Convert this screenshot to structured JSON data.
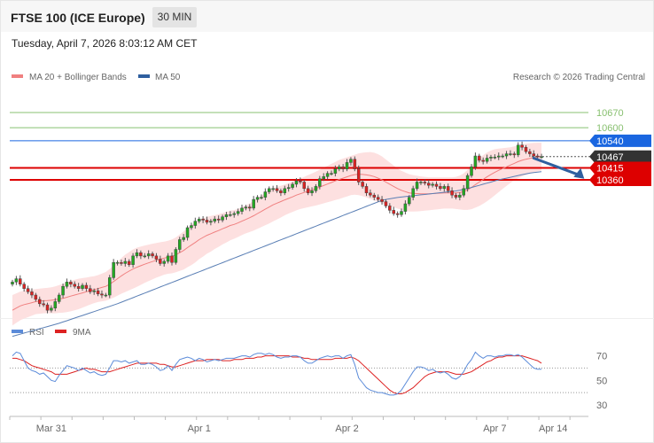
{
  "header": {
    "title": "FTSE 100 (ICE Europe)",
    "interval": "30 MIN",
    "timestamp": "Tuesday, April 7, 2026 8:03:12 AM CET"
  },
  "legend": {
    "ma20": "MA 20 + Bollinger Bands",
    "ma50": "MA 50",
    "credit": "Research © 2026 Trading Central",
    "rsi": "RSI",
    "rsi_ma": "9MA"
  },
  "colors": {
    "candle_up": "#22aa22",
    "candle_down": "#dd2222",
    "bollinger_fill": "#fde0e0",
    "ma20": "#f08080",
    "ma50": "#5a7fb5",
    "support": "#dd0000",
    "resistance_blue": "#1a66e0",
    "target_green": "#88c070",
    "current": "#333333",
    "rsi": "#5b8bd9",
    "rsi_ma": "#dd2222",
    "arrow": "#2f5f9f"
  },
  "chart_data": [
    {
      "type": "candlestick",
      "title": "FTSE 100 (ICE Europe)",
      "interval": "30 MIN",
      "ylim": [
        9720,
        10780
      ],
      "x_tick_labels": [
        {
          "label": "Mar 31",
          "index": 10
        },
        {
          "label": "Apr 1",
          "index": 48
        },
        {
          "label": "Apr 2",
          "index": 86
        },
        {
          "label": "Apr 7",
          "index": 124
        },
        {
          "label": "Apr 14",
          "index": 139
        }
      ],
      "levels": [
        {
          "value": 10670,
          "label": "10670",
          "kind": "target",
          "color": "#88c070"
        },
        {
          "value": 10600,
          "label": "10600",
          "kind": "target",
          "color": "#88c070"
        },
        {
          "value": 10540,
          "label": "10540",
          "kind": "resistance",
          "color": "#1a66e0"
        },
        {
          "value": 10467,
          "label": "10467",
          "kind": "last",
          "color": "#333333"
        },
        {
          "value": 10415,
          "label": "10415",
          "kind": "pivot",
          "color": "#dd0000"
        },
        {
          "value": 10360,
          "label": "10360",
          "kind": "support",
          "color": "#dd0000"
        }
      ],
      "arrow": {
        "from": {
          "index": 134,
          "value": 10460
        },
        "to": {
          "index": 147,
          "value": 10365
        }
      },
      "close": [
        9890,
        9905,
        9880,
        9860,
        9845,
        9830,
        9810,
        9790,
        9785,
        9760,
        9770,
        9800,
        9830,
        9870,
        9890,
        9880,
        9870,
        9860,
        9875,
        9860,
        9845,
        9850,
        9835,
        9830,
        9830,
        9910,
        9980,
        9980,
        9975,
        9985,
        9970,
        10010,
        10025,
        10010,
        10010,
        10020,
        10010,
        9995,
        9975,
        9985,
        10010,
        9980,
        10040,
        10085,
        10095,
        10140,
        10150,
        10170,
        10180,
        10175,
        10165,
        10170,
        10180,
        10175,
        10190,
        10200,
        10200,
        10205,
        10215,
        10230,
        10235,
        10230,
        10270,
        10280,
        10280,
        10305,
        10320,
        10320,
        10310,
        10300,
        10320,
        10325,
        10340,
        10355,
        10350,
        10320,
        10300,
        10310,
        10330,
        10365,
        10375,
        10390,
        10390,
        10410,
        10420,
        10410,
        10440,
        10455,
        10410,
        10350,
        10330,
        10300,
        10290,
        10280,
        10270,
        10260,
        10240,
        10220,
        10205,
        10200,
        10215,
        10250,
        10280,
        10320,
        10350,
        10350,
        10345,
        10335,
        10340,
        10330,
        10320,
        10330,
        10310,
        10290,
        10280,
        10290,
        10320,
        10380,
        10420,
        10470,
        10450,
        10445,
        10460,
        10465,
        10465,
        10470,
        10470,
        10480,
        10480,
        10475,
        10520,
        10510,
        10490,
        10480,
        10470,
        10467,
        10467
      ],
      "ma20": [
        9760,
        9770,
        9780,
        9786,
        9790,
        9795,
        9800,
        9802,
        9804,
        9805,
        9806,
        9808,
        9812,
        9815,
        9820,
        9825,
        9830,
        9835,
        9840,
        9845,
        9850,
        9855,
        9860,
        9865,
        9870,
        9880,
        9892,
        9905,
        9918,
        9930,
        9940,
        9950,
        9958,
        9965,
        9972,
        9978,
        9984,
        9990,
        9995,
        10000,
        10004,
        10008,
        10015,
        10025,
        10035,
        10048,
        10060,
        10072,
        10085,
        10095,
        10105,
        10112,
        10120,
        10127,
        10135,
        10142,
        10150,
        10155,
        10162,
        10170,
        10178,
        10186,
        10195,
        10205,
        10215,
        10225,
        10235,
        10245,
        10253,
        10260,
        10268,
        10275,
        10282,
        10290,
        10296,
        10302,
        10308,
        10314,
        10320,
        10327,
        10334,
        10341,
        10348,
        10355,
        10362,
        10368,
        10374,
        10380,
        10384,
        10386,
        10385,
        10383,
        10380,
        10375,
        10368,
        10360,
        10350,
        10340,
        10330,
        10320,
        10312,
        10306,
        10300,
        10298,
        10297,
        10296,
        10296,
        10296,
        10297,
        10298,
        10299,
        10300,
        10300,
        10300,
        10300,
        10302,
        10306,
        10314,
        10325,
        10338,
        10350,
        10362,
        10374,
        10385,
        10395,
        10404,
        10412,
        10420,
        10428,
        10436,
        10444,
        10450,
        10455,
        10459,
        10462,
        10465,
        10467
      ],
      "band_width": [
        70,
        68,
        66,
        64,
        62,
        60,
        58,
        58,
        58,
        58,
        60,
        62,
        64,
        66,
        68,
        70,
        70,
        70,
        68,
        66,
        64,
        62,
        62,
        64,
        66,
        70,
        74,
        78,
        82,
        86,
        88,
        90,
        90,
        88,
        86,
        84,
        82,
        80,
        78,
        76,
        76,
        78,
        80,
        84,
        88,
        90,
        92,
        92,
        90,
        88,
        85,
        82,
        78,
        75,
        72,
        70,
        68,
        66,
        65,
        64,
        64,
        66,
        68,
        70,
        72,
        74,
        76,
        76,
        75,
        73,
        71,
        70,
        70,
        70,
        70,
        72,
        74,
        76,
        78,
        80,
        82,
        84,
        86,
        88,
        90,
        90,
        90,
        90,
        92,
        96,
        100,
        104,
        108,
        110,
        110,
        108,
        104,
        100,
        96,
        92,
        90,
        88,
        86,
        84,
        82,
        80,
        78,
        76,
        75,
        74,
        73,
        72,
        72,
        72,
        74,
        78,
        84,
        92,
        100,
        106,
        110,
        112,
        112,
        110,
        106,
        100,
        94,
        88,
        82,
        78,
        76,
        74,
        72,
        70,
        68,
        66,
        64
      ],
      "ma50": [
        9640,
        9645,
        9650,
        9655,
        9660,
        9665,
        9670,
        9675,
        9680,
        9685,
        9690,
        9695,
        9700,
        9706,
        9712,
        9718,
        9724,
        9730,
        9736,
        9742,
        9748,
        9754,
        9760,
        9766,
        9772,
        9778,
        9784,
        9790,
        9797,
        9804,
        9811,
        9818,
        9825,
        9832,
        9839,
        9846,
        9853,
        9860,
        9867,
        9874,
        9881,
        9888,
        9895,
        9902,
        9909,
        9916,
        9923,
        9930,
        9937,
        9944,
        9951,
        9958,
        9965,
        9972,
        9979,
        9986,
        9993,
        10000,
        10007,
        10014,
        10021,
        10028,
        10035,
        10042,
        10049,
        10056,
        10063,
        10070,
        10077,
        10084,
        10091,
        10098,
        10105,
        10112,
        10119,
        10126,
        10133,
        10140,
        10147,
        10154,
        10161,
        10168,
        10175,
        10182,
        10189,
        10196,
        10203,
        10210,
        10217,
        10224,
        10231,
        10238,
        10245,
        10252,
        10259,
        10266,
        10270,
        10273,
        10276,
        10279,
        10281,
        10283,
        10285,
        10287,
        10289,
        10291,
        10293,
        10295,
        10297,
        10299,
        10301,
        10303,
        10305,
        10307,
        10309,
        10312,
        10316,
        10320,
        10325,
        10330,
        10335,
        10340,
        10345,
        10350,
        10355,
        10360,
        10364,
        10368,
        10372,
        10376,
        10380,
        10384,
        10388,
        10391,
        10394,
        10396,
        10398
      ]
    },
    {
      "type": "line",
      "title": "",
      "series": [
        {
          "name": "RSI",
          "values": [
            70,
            73,
            72,
            66,
            60,
            58,
            57,
            55,
            56,
            53,
            50,
            49,
            54,
            58,
            62,
            61,
            60,
            58,
            60,
            58,
            56,
            57,
            55,
            54,
            55,
            60,
            66,
            66,
            65,
            66,
            64,
            65,
            66,
            63,
            63,
            64,
            63,
            61,
            58,
            59,
            62,
            58,
            63,
            67,
            68,
            69,
            68,
            66,
            68,
            67,
            65,
            66,
            67,
            66,
            67,
            68,
            68,
            68,
            69,
            70,
            70,
            69,
            71,
            72,
            72,
            71,
            72,
            71,
            69,
            68,
            69,
            69,
            70,
            70,
            69,
            66,
            64,
            64,
            66,
            68,
            69,
            70,
            69,
            70,
            70,
            68,
            70,
            71,
            63,
            52,
            48,
            44,
            42,
            41,
            40,
            40,
            39,
            38,
            38,
            39,
            42,
            47,
            52,
            57,
            61,
            61,
            60,
            58,
            59,
            57,
            56,
            57,
            55,
            52,
            51,
            53,
            57,
            63,
            67,
            73,
            70,
            68,
            70,
            70,
            69,
            70,
            70,
            71,
            71,
            70,
            71,
            69,
            66,
            63,
            60,
            59,
            59
          ]
        },
        {
          "name": "9MA",
          "values": [
            68,
            68,
            67,
            66,
            64,
            62,
            61,
            60,
            59,
            58,
            57,
            55,
            55,
            55,
            55,
            56,
            57,
            58,
            59,
            60,
            59,
            59,
            58,
            57,
            57,
            57,
            58,
            59,
            60,
            61,
            62,
            63,
            64,
            64,
            64,
            64,
            64,
            64,
            63,
            63,
            62,
            61,
            61,
            62,
            63,
            64,
            65,
            66,
            66,
            66,
            67,
            67,
            67,
            67,
            66,
            66,
            66,
            67,
            67,
            67,
            68,
            68,
            68,
            69,
            69,
            70,
            70,
            70,
            70,
            70,
            70,
            70,
            69,
            69,
            69,
            68,
            68,
            67,
            67,
            67,
            67,
            67,
            67,
            68,
            68,
            68,
            68,
            69,
            68,
            66,
            63,
            60,
            57,
            54,
            51,
            48,
            45,
            42,
            40,
            39,
            39,
            40,
            42,
            44,
            47,
            50,
            53,
            55,
            56,
            57,
            57,
            57,
            57,
            56,
            55,
            55,
            55,
            56,
            57,
            59,
            61,
            63,
            65,
            66,
            68,
            69,
            69,
            70,
            70,
            70,
            70,
            70,
            69,
            68,
            67,
            66,
            64
          ]
        }
      ],
      "ylim": [
        22,
        82
      ],
      "y_ticks": [
        30,
        50,
        70
      ],
      "reference_lines": [
        60,
        40
      ]
    }
  ]
}
